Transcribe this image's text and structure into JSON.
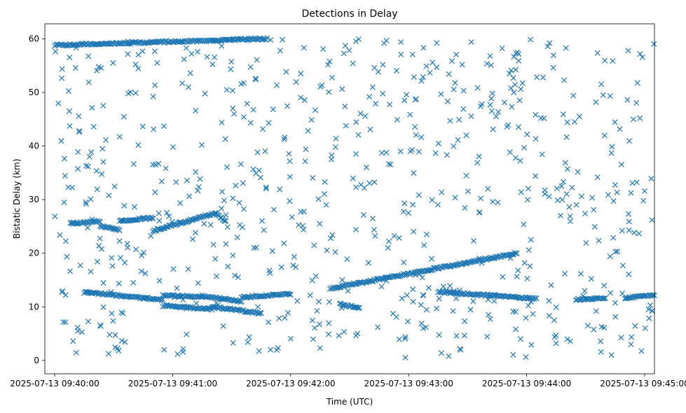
{
  "chart_data": {
    "type": "scatter",
    "title": "Detections in Delay",
    "xlabel": "Time (UTC)",
    "ylabel": "Bistatic Delay (km)",
    "marker": "x",
    "color": "#1f77b4",
    "xlim": [
      "2025-07-13 09:39:55",
      "2025-07-13 09:45:05"
    ],
    "ylim": [
      -2.5,
      62.8
    ],
    "x_ticks": [
      "2025-07-13 09:40:00",
      "2025-07-13 09:41:00",
      "2025-07-13 09:42:00",
      "2025-07-13 09:43:00",
      "2025-07-13 09:44:00",
      "2025-07-13 09:45:00"
    ],
    "y_ticks": [
      0,
      10,
      20,
      30,
      40,
      50,
      60
    ],
    "grid": false,
    "tracks": [
      {
        "start": "2025-07-13 09:40:00",
        "end": "2025-07-13 09:41:48",
        "delay_start": 58.8,
        "delay_end": 60.0
      },
      {
        "start": "2025-07-13 09:40:08",
        "end": "2025-07-13 09:40:23",
        "delay_start": 25.5,
        "delay_end": 26.0
      },
      {
        "start": "2025-07-13 09:40:23",
        "end": "2025-07-13 09:40:33",
        "delay_start": 25.0,
        "delay_end": 24.4
      },
      {
        "start": "2025-07-13 09:40:33",
        "end": "2025-07-13 09:40:50",
        "delay_start": 26.0,
        "delay_end": 26.6
      },
      {
        "start": "2025-07-13 09:40:50",
        "end": "2025-07-13 09:41:08",
        "delay_start": 24.2,
        "delay_end": 26.0
      },
      {
        "start": "2025-07-13 09:41:08",
        "end": "2025-07-13 09:41:22",
        "delay_start": 26.0,
        "delay_end": 27.6
      },
      {
        "start": "2025-07-13 09:41:22",
        "end": "2025-07-13 09:41:27",
        "delay_start": 27.2,
        "delay_end": 26.0
      },
      {
        "start": "2025-07-13 09:40:15",
        "end": "2025-07-13 09:40:55",
        "delay_start": 12.7,
        "delay_end": 11.3
      },
      {
        "start": "2025-07-13 09:40:55",
        "end": "2025-07-13 09:41:15",
        "delay_start": 12.2,
        "delay_end": 11.8
      },
      {
        "start": "2025-07-13 09:41:15",
        "end": "2025-07-13 09:41:35",
        "delay_start": 12.0,
        "delay_end": 11.0
      },
      {
        "start": "2025-07-13 09:41:35",
        "end": "2025-07-13 09:42:00",
        "delay_start": 11.8,
        "delay_end": 12.4
      },
      {
        "start": "2025-07-13 09:40:55",
        "end": "2025-07-13 09:41:20",
        "delay_start": 10.2,
        "delay_end": 9.6
      },
      {
        "start": "2025-07-13 09:41:20",
        "end": "2025-07-13 09:41:45",
        "delay_start": 10.0,
        "delay_end": 8.8
      },
      {
        "start": "2025-07-13 09:42:20",
        "end": "2025-07-13 09:43:55",
        "delay_start": 13.4,
        "delay_end": 20.0
      },
      {
        "start": "2025-07-13 09:43:15",
        "end": "2025-07-13 09:44:05",
        "delay_start": 12.8,
        "delay_end": 11.5
      },
      {
        "start": "2025-07-13 09:44:25",
        "end": "2025-07-13 09:44:40",
        "delay_start": 11.4,
        "delay_end": 11.6
      },
      {
        "start": "2025-07-13 09:44:50",
        "end": "2025-07-13 09:45:10",
        "delay_start": 11.6,
        "delay_end": 12.4
      },
      {
        "start": "2025-07-13 09:42:25",
        "end": "2025-07-13 09:42:35",
        "delay_start": 10.5,
        "delay_end": 9.8
      }
    ],
    "clutter": [
      {
        "start": "2025-07-13 09:40:00",
        "end": "2025-07-13 09:45:05",
        "delay_min": 0.5,
        "delay_max": 60.0
      }
    ]
  }
}
